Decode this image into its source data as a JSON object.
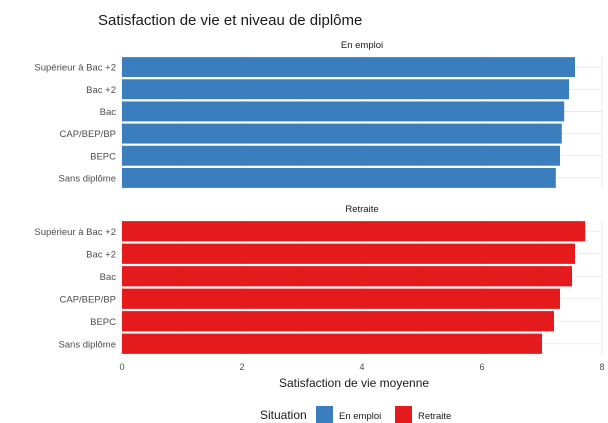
{
  "chart_data": {
    "type": "bar",
    "orientation": "horizontal",
    "title": "Satisfaction de vie et niveau de diplôme",
    "xlabel": "Satisfaction de vie moyenne",
    "ylabel": "",
    "xlim": [
      0,
      8
    ],
    "xticks": [
      0,
      2,
      4,
      6,
      8
    ],
    "grid": true,
    "legend_position": "bottom",
    "legend_title": "Situation",
    "categories": [
      "Supérieur à Bac +2",
      "Bac +2",
      "Bac",
      "CAP/BEP/BP",
      "BEPC",
      "Sans diplôme"
    ],
    "panels": [
      {
        "name": "En emploi",
        "color": "#3A7EBE",
        "values": [
          7.55,
          7.45,
          7.37,
          7.33,
          7.3,
          7.23
        ]
      },
      {
        "name": "Retraite",
        "color": "#E41A1C",
        "values": [
          7.72,
          7.55,
          7.5,
          7.3,
          7.2,
          7.0
        ]
      }
    ]
  }
}
